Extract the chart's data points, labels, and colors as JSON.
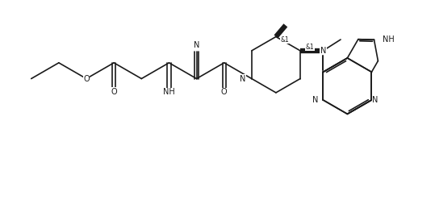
{
  "bg": "#ffffff",
  "lc": "#1a1a1a",
  "lw": 1.2,
  "fs": 7.0,
  "fs_sm": 5.5,
  "figsize": [
    5.39,
    2.48
  ],
  "dpi": 100,
  "xlim": [
    0.0,
    10.8
  ],
  "ylim": [
    -0.3,
    4.8
  ]
}
